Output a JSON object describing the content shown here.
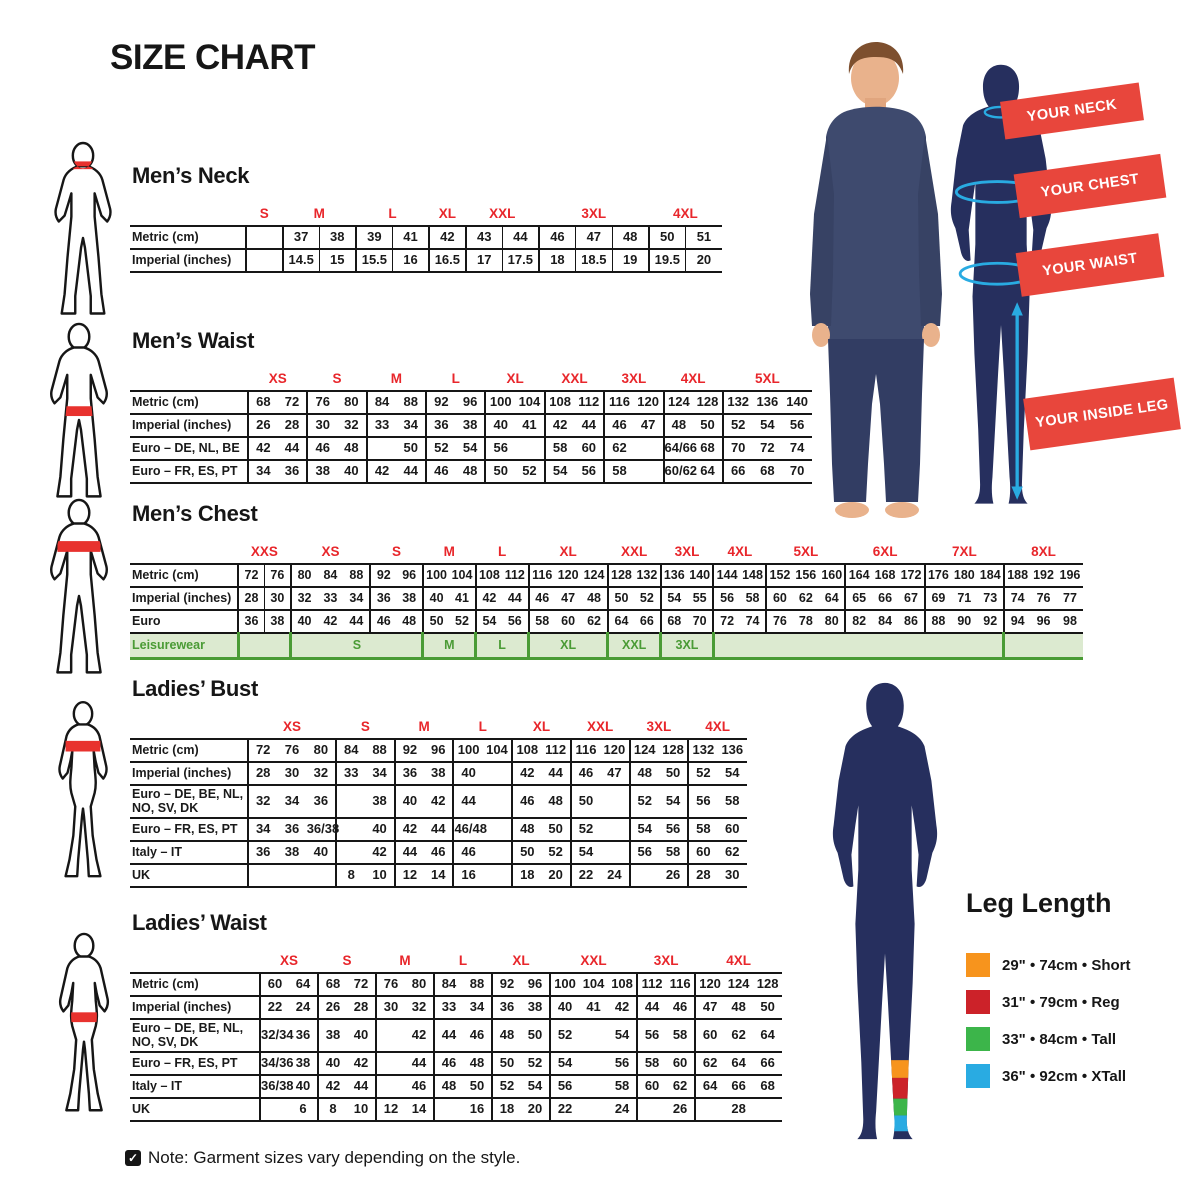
{
  "page_title": "SIZE CHART",
  "note": "Note: Garment sizes vary depending on the style.",
  "colors": {
    "accent_red": "#e8262b",
    "banner_red": "#e8463c",
    "silhouette_navy": "#262f5e",
    "leisure_green": "#4a9b35",
    "leisure_bg": "#dcead0",
    "measure_cyan": "#29abe2"
  },
  "banners": [
    {
      "label": "YOUR NECK"
    },
    {
      "label": "YOUR CHEST"
    },
    {
      "label": "YOUR WAIST"
    },
    {
      "label": "YOUR INSIDE LEG"
    }
  ],
  "leg_length": {
    "title": "Leg Length",
    "items": [
      {
        "color": "#f7941d",
        "label": "29\" • 74cm • Short"
      },
      {
        "color": "#cc2229",
        "label": "31\" • 79cm • Reg"
      },
      {
        "color": "#3cb54a",
        "label": "33\" • 84cm • Tall"
      },
      {
        "color": "#29abe2",
        "label": "36\" • 92cm • XTall"
      }
    ]
  },
  "tables": [
    {
      "id": "mens-neck",
      "title": "Men’s Neck",
      "sizes": [
        {
          "label": "S",
          "span": 1
        },
        {
          "label": "M",
          "span": 2
        },
        {
          "label": "L",
          "span": 2
        },
        {
          "label": "XL",
          "span": 1
        },
        {
          "label": "XXL",
          "span": 2
        },
        {
          "label": "3XL",
          "span": 3
        },
        {
          "label": "4XL",
          "span": 2
        }
      ],
      "rows": [
        {
          "label": "Metric (cm)",
          "cells": [
            "",
            "37",
            "38",
            "39",
            "41",
            "42",
            "43",
            "44",
            "46",
            "47",
            "48",
            "50",
            "51"
          ]
        },
        {
          "label": "Imperial (inches)",
          "cells": [
            "",
            "14.5",
            "15",
            "15.5",
            "16",
            "16.5",
            "17",
            "17.5",
            "18",
            "18.5",
            "19",
            "19.5",
            "20"
          ]
        }
      ]
    },
    {
      "id": "mens-waist",
      "title": "Men’s Waist",
      "sizes": [
        {
          "label": "XS",
          "span": 2
        },
        {
          "label": "S",
          "span": 2
        },
        {
          "label": "M",
          "span": 2
        },
        {
          "label": "L",
          "span": 2
        },
        {
          "label": "XL",
          "span": 2
        },
        {
          "label": "XXL",
          "span": 2
        },
        {
          "label": "3XL",
          "span": 2
        },
        {
          "label": "4XL",
          "span": 2
        },
        {
          "label": "5XL",
          "span": 3
        }
      ],
      "rows": [
        {
          "label": "Metric (cm)",
          "cells": [
            "68",
            "72",
            "76",
            "80",
            "84",
            "88",
            "92",
            "96",
            "100",
            "104",
            "108",
            "112",
            "116",
            "120",
            "124",
            "128",
            "132",
            "136",
            "140"
          ]
        },
        {
          "label": "Imperial (inches)",
          "cells": [
            "26",
            "28",
            "30",
            "32",
            "33",
            "34",
            "36",
            "38",
            "40",
            "41",
            "42",
            "44",
            "46",
            "47",
            "48",
            "50",
            "52",
            "54",
            "56"
          ]
        },
        {
          "label": "Euro – DE, NL, BE",
          "cells": [
            "42",
            "44",
            "46",
            "48",
            "",
            "50",
            "52",
            "54",
            "56",
            "",
            "58",
            "60",
            "62",
            "",
            "64/66",
            "68",
            "70",
            "72",
            "74"
          ]
        },
        {
          "label": "Euro – FR, ES, PT",
          "cells": [
            "34",
            "36",
            "38",
            "40",
            "42",
            "44",
            "46",
            "48",
            "50",
            "52",
            "54",
            "56",
            "58",
            "",
            "60/62",
            "64",
            "66",
            "68",
            "70"
          ]
        }
      ]
    },
    {
      "id": "mens-chest",
      "title": "Men’s Chest",
      "sizes": [
        {
          "label": "XXS",
          "span": 2
        },
        {
          "label": "XS",
          "span": 3
        },
        {
          "label": "S",
          "span": 2
        },
        {
          "label": "M",
          "span": 2
        },
        {
          "label": "L",
          "span": 2
        },
        {
          "label": "XL",
          "span": 3
        },
        {
          "label": "XXL",
          "span": 2
        },
        {
          "label": "3XL",
          "span": 2
        },
        {
          "label": "4XL",
          "span": 2
        },
        {
          "label": "5XL",
          "span": 3
        },
        {
          "label": "6XL",
          "span": 3
        },
        {
          "label": "7XL",
          "span": 3
        },
        {
          "label": "8XL",
          "span": 3
        }
      ],
      "rows": [
        {
          "label": "Metric (cm)",
          "cells": [
            "72",
            "76",
            "80",
            "84",
            "88",
            "92",
            "96",
            "100",
            "104",
            "108",
            "112",
            "116",
            "120",
            "124",
            "128",
            "132",
            "136",
            "140",
            "144",
            "148",
            "152",
            "156",
            "160",
            "164",
            "168",
            "172",
            "176",
            "180",
            "184",
            "188",
            "192",
            "196"
          ]
        },
        {
          "label": "Imperial (inches)",
          "cells": [
            "28",
            "30",
            "32",
            "33",
            "34",
            "36",
            "38",
            "40",
            "41",
            "42",
            "44",
            "46",
            "47",
            "48",
            "50",
            "52",
            "54",
            "55",
            "56",
            "58",
            "60",
            "62",
            "64",
            "65",
            "66",
            "67",
            "69",
            "71",
            "73",
            "74",
            "76",
            "77"
          ]
        },
        {
          "label": "Euro",
          "cells": [
            "36",
            "38",
            "40",
            "42",
            "44",
            "46",
            "48",
            "50",
            "52",
            "54",
            "56",
            "58",
            "60",
            "62",
            "64",
            "66",
            "68",
            "70",
            "72",
            "74",
            "76",
            "78",
            "80",
            "82",
            "84",
            "86",
            "88",
            "90",
            "92",
            "94",
            "96",
            "98"
          ]
        }
      ],
      "leisure": {
        "label": "Leisurewear",
        "cells": [
          {
            "label": "",
            "span": 2
          },
          {
            "label": "S",
            "span": 5
          },
          {
            "label": "M",
            "span": 2
          },
          {
            "label": "L",
            "span": 2
          },
          {
            "label": "XL",
            "span": 3
          },
          {
            "label": "XXL",
            "span": 2
          },
          {
            "label": "3XL",
            "span": 2
          },
          {
            "label": "",
            "span": 11
          },
          {
            "label": "",
            "span": 3
          }
        ]
      }
    },
    {
      "id": "ladies-bust",
      "title": "Ladies’ Bust",
      "sizes": [
        {
          "label": "XS",
          "span": 3
        },
        {
          "label": "S",
          "span": 2
        },
        {
          "label": "M",
          "span": 2
        },
        {
          "label": "L",
          "span": 2
        },
        {
          "label": "XL",
          "span": 2
        },
        {
          "label": "XXL",
          "span": 2
        },
        {
          "label": "3XL",
          "span": 2
        },
        {
          "label": "4XL",
          "span": 2
        }
      ],
      "rows": [
        {
          "label": "Metric (cm)",
          "cells": [
            "72",
            "76",
            "80",
            "84",
            "88",
            "92",
            "96",
            "100",
            "104",
            "108",
            "112",
            "116",
            "120",
            "124",
            "128",
            "132",
            "136"
          ]
        },
        {
          "label": "Imperial (inches)",
          "cells": [
            "28",
            "30",
            "32",
            "33",
            "34",
            "36",
            "38",
            "40",
            "",
            "42",
            "44",
            "46",
            "47",
            "48",
            "50",
            "52",
            "54"
          ]
        },
        {
          "label": "Euro –  DE, BE, NL, NO, SV, DK",
          "cells": [
            "32",
            "34",
            "36",
            "",
            "38",
            "40",
            "42",
            "44",
            "",
            "46",
            "48",
            "50",
            "",
            "52",
            "54",
            "56",
            "58"
          ]
        },
        {
          "label": "Euro – FR, ES, PT",
          "cells": [
            "34",
            "36",
            "36/38",
            "",
            "40",
            "42",
            "44",
            "46/48",
            "",
            "48",
            "50",
            "52",
            "",
            "54",
            "56",
            "58",
            "60"
          ]
        },
        {
          "label": "Italy – IT",
          "cells": [
            "36",
            "38",
            "40",
            "",
            "42",
            "44",
            "46",
            "46",
            "",
            "50",
            "52",
            "54",
            "",
            "56",
            "58",
            "60",
            "62"
          ]
        },
        {
          "label": "UK",
          "cells": [
            "",
            "",
            "",
            "8",
            "10",
            "12",
            "14",
            "16",
            "",
            "18",
            "20",
            "22",
            "24",
            "",
            "26",
            "28",
            "30"
          ]
        }
      ]
    },
    {
      "id": "ladies-waist",
      "title": "Ladies’ Waist",
      "sizes": [
        {
          "label": "XS",
          "span": 2
        },
        {
          "label": "S",
          "span": 2
        },
        {
          "label": "M",
          "span": 2
        },
        {
          "label": "L",
          "span": 2
        },
        {
          "label": "XL",
          "span": 2
        },
        {
          "label": "XXL",
          "span": 3
        },
        {
          "label": "3XL",
          "span": 2
        },
        {
          "label": "4XL",
          "span": 3
        }
      ],
      "rows": [
        {
          "label": "Metric (cm)",
          "cells": [
            "60",
            "64",
            "68",
            "72",
            "76",
            "80",
            "84",
            "88",
            "92",
            "96",
            "100",
            "104",
            "108",
            "112",
            "116",
            "120",
            "124",
            "128"
          ]
        },
        {
          "label": "Imperial (inches)",
          "cells": [
            "22",
            "24",
            "26",
            "28",
            "30",
            "32",
            "33",
            "34",
            "36",
            "38",
            "40",
            "41",
            "42",
            "44",
            "46",
            "47",
            "48",
            "50"
          ]
        },
        {
          "label": "Euro – DE, BE, NL, NO, SV, DK",
          "cells": [
            "32/34",
            "36",
            "38",
            "40",
            "",
            "42",
            "44",
            "46",
            "48",
            "50",
            "52",
            "",
            "54",
            "56",
            "58",
            "60",
            "62",
            "64"
          ]
        },
        {
          "label": "Euro – FR, ES, PT",
          "cells": [
            "34/36",
            "38",
            "40",
            "42",
            "",
            "44",
            "46",
            "48",
            "50",
            "52",
            "54",
            "",
            "56",
            "58",
            "60",
            "62",
            "64",
            "66"
          ]
        },
        {
          "label": "Italy – IT",
          "cells": [
            "36/38",
            "40",
            "42",
            "44",
            "",
            "46",
            "48",
            "50",
            "52",
            "54",
            "56",
            "",
            "58",
            "60",
            "62",
            "64",
            "66",
            "68"
          ]
        },
        {
          "label": "UK",
          "cells": [
            "",
            "6",
            "8",
            "10",
            "12",
            "14",
            "",
            "16",
            "18",
            "20",
            "22",
            "",
            "24",
            "",
            "26",
            "",
            "28",
            ""
          ]
        }
      ]
    }
  ]
}
